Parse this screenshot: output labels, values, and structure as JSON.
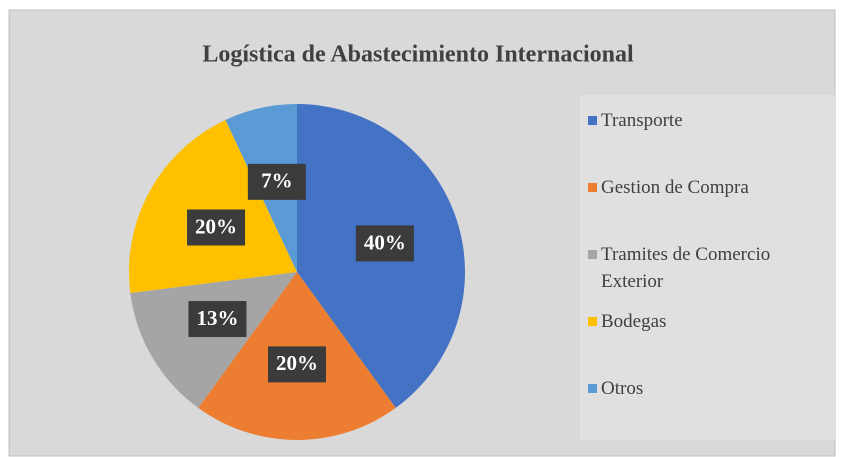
{
  "chart_data": {
    "type": "pie",
    "title": "Logística de Abastecimiento Internacional",
    "categories": [
      "Transporte",
      "Gestion de Compra",
      "Tramites de Comercio Exterior",
      "Bodegas",
      "Otros"
    ],
    "values": [
      40,
      20,
      13,
      20,
      7
    ],
    "value_labels": [
      "40%",
      "20%",
      "13%",
      "20%",
      "7%"
    ],
    "colors": [
      "#4472c4",
      "#ed7d31",
      "#a5a5a5",
      "#ffc000",
      "#5b9bd5"
    ],
    "legend": "right"
  }
}
